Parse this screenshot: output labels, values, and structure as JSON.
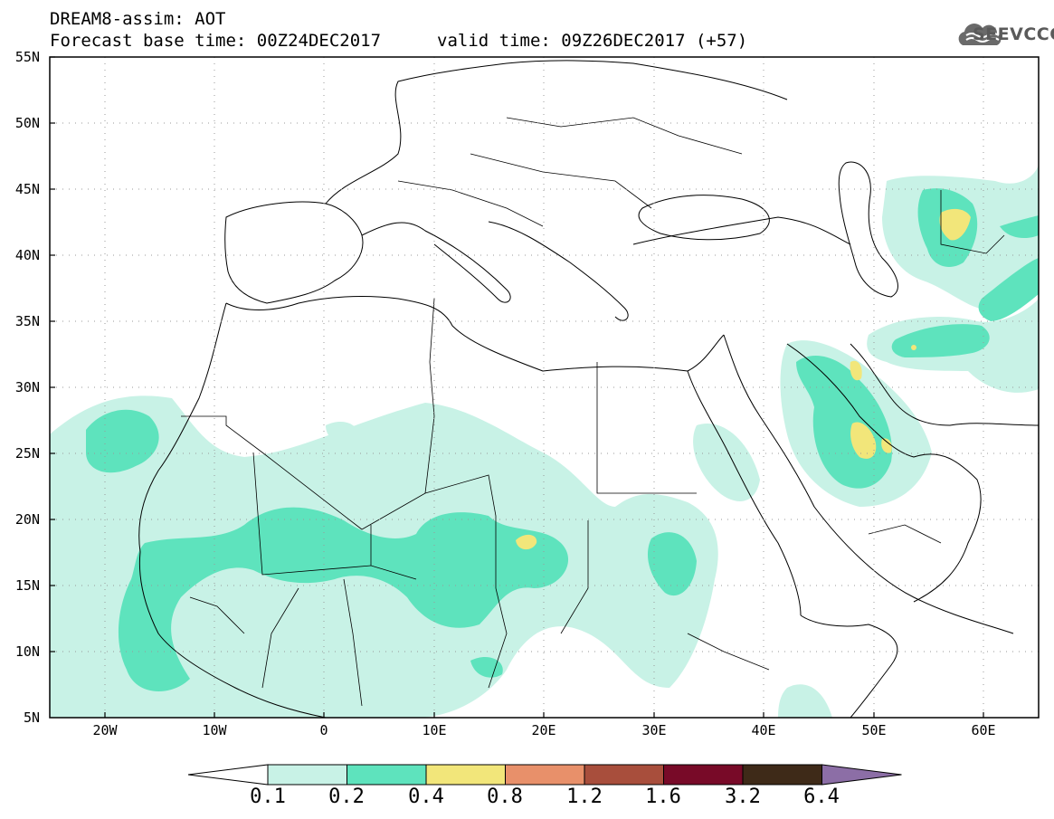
{
  "header": {
    "title": "DREAM8-assim: AOT",
    "base_time": "Forecast base time: 00Z24DEC2017",
    "valid_time": "valid time: 09Z26DEC2017 (+57)"
  },
  "logo": {
    "text": "SEEVCCC",
    "icon": "cloud-icon"
  },
  "map": {
    "lat_labels": [
      "55N",
      "50N",
      "45N",
      "40N",
      "35N",
      "30N",
      "25N",
      "20N",
      "15N",
      "10N",
      "5N"
    ],
    "lon_labels": [
      "20W",
      "10W",
      "0",
      "10E",
      "20E",
      "30E",
      "40E",
      "50E",
      "60E"
    ]
  },
  "colorbar": {
    "labels": [
      "0.1",
      "0.2",
      "0.4",
      "0.8",
      "1.2",
      "1.6",
      "3.2",
      "6.4"
    ],
    "colors": [
      "#ffffff",
      "#c8f2e6",
      "#5ee3bd",
      "#f2e67a",
      "#e8906a",
      "#a84e3c",
      "#780a28",
      "#3e2a18",
      "#8c6ea6"
    ]
  },
  "colors": {
    "light": "#c8f2e6",
    "medium": "#5ee3bd",
    "high": "#f2e67a"
  }
}
